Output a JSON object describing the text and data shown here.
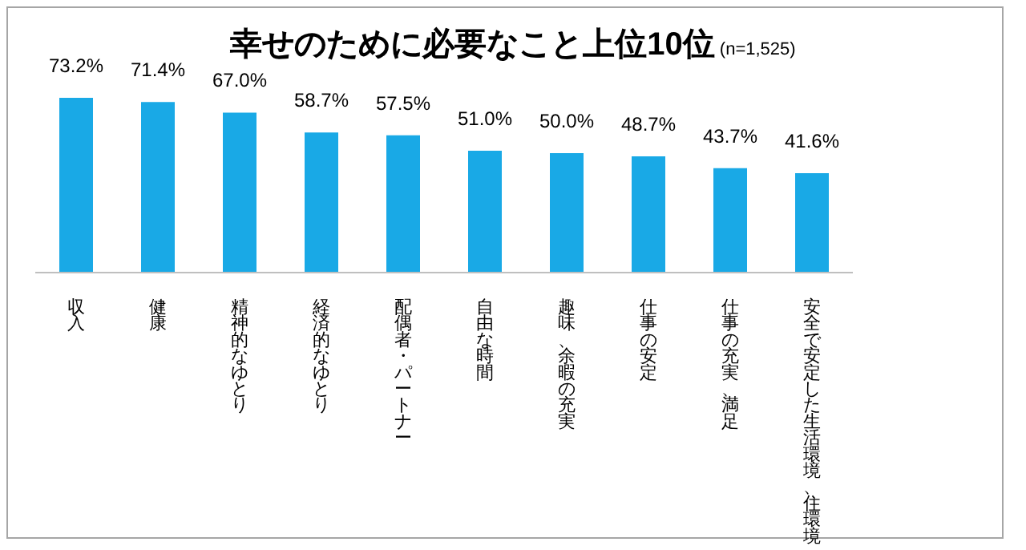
{
  "chart_data": {
    "type": "bar",
    "title": "幸せのために必要なこと上位10位",
    "subtitle": "(n=1,525)",
    "categories": [
      "収入",
      "健康",
      "精神的なゆとり",
      "経済的なゆとり",
      "配偶者・パートナー",
      "自由な時間",
      "趣味、余暇の充実",
      "仕事の安定",
      "仕事の充実、満足",
      "安全で安定した生活環境、住環境"
    ],
    "values": [
      73.2,
      71.4,
      67.0,
      58.7,
      57.5,
      51.0,
      50.0,
      48.7,
      43.7,
      41.6
    ],
    "value_labels": [
      "73.2%",
      "71.4%",
      "67.0%",
      "58.7%",
      "57.5%",
      "51.0%",
      "50.0%",
      "48.7%",
      "43.7%",
      "41.6%"
    ],
    "color": "#19a9e6",
    "grid": false,
    "legend": false
  }
}
